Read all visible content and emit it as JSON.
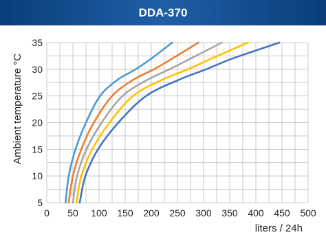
{
  "header": {
    "title": "DDA-370"
  },
  "chart_data": {
    "type": "line",
    "title": "DDA-370",
    "xlabel": "liters / 24h",
    "ylabel": "Ambient temperature °C",
    "xlim": [
      0,
      500
    ],
    "ylim": [
      5,
      35
    ],
    "xticks": [
      0,
      50,
      100,
      150,
      200,
      250,
      300,
      350,
      400,
      450,
      500
    ],
    "yticks": [
      5,
      10,
      15,
      20,
      25,
      30,
      35
    ],
    "grid": true,
    "series": [
      {
        "color": "#4a9ad4",
        "points": [
          [
            36,
            5
          ],
          [
            42,
            10
          ],
          [
            55,
            15
          ],
          [
            75,
            20
          ],
          [
            102,
            25
          ],
          [
            135,
            28
          ],
          [
            170,
            30
          ],
          [
            200,
            32
          ],
          [
            240,
            35
          ]
        ]
      },
      {
        "color": "#ed7d31",
        "points": [
          [
            42,
            5
          ],
          [
            50,
            10
          ],
          [
            66,
            15
          ],
          [
            90,
            20
          ],
          [
            125,
            25
          ],
          [
            165,
            28
          ],
          [
            205,
            30
          ],
          [
            240,
            32
          ],
          [
            290,
            35
          ]
        ]
      },
      {
        "color": "#a5a5a5",
        "points": [
          [
            50,
            5
          ],
          [
            58,
            10
          ],
          [
            76,
            15
          ],
          [
            105,
            20
          ],
          [
            145,
            25
          ],
          [
            192,
            28
          ],
          [
            235,
            30
          ],
          [
            275,
            32
          ],
          [
            335,
            35
          ]
        ]
      },
      {
        "color": "#ffc000",
        "points": [
          [
            57,
            5
          ],
          [
            66,
            10
          ],
          [
            87,
            15
          ],
          [
            120,
            20
          ],
          [
            165,
            25
          ],
          [
            220,
            28
          ],
          [
            270,
            30
          ],
          [
            315,
            32
          ],
          [
            385,
            35
          ]
        ]
      },
      {
        "color": "#4472c4",
        "points": [
          [
            63,
            5
          ],
          [
            74,
            10
          ],
          [
            98,
            15
          ],
          [
            137,
            20
          ],
          [
            190,
            25
          ],
          [
            252,
            28
          ],
          [
            305,
            30
          ],
          [
            355,
            32
          ],
          [
            445,
            35
          ]
        ]
      }
    ]
  }
}
